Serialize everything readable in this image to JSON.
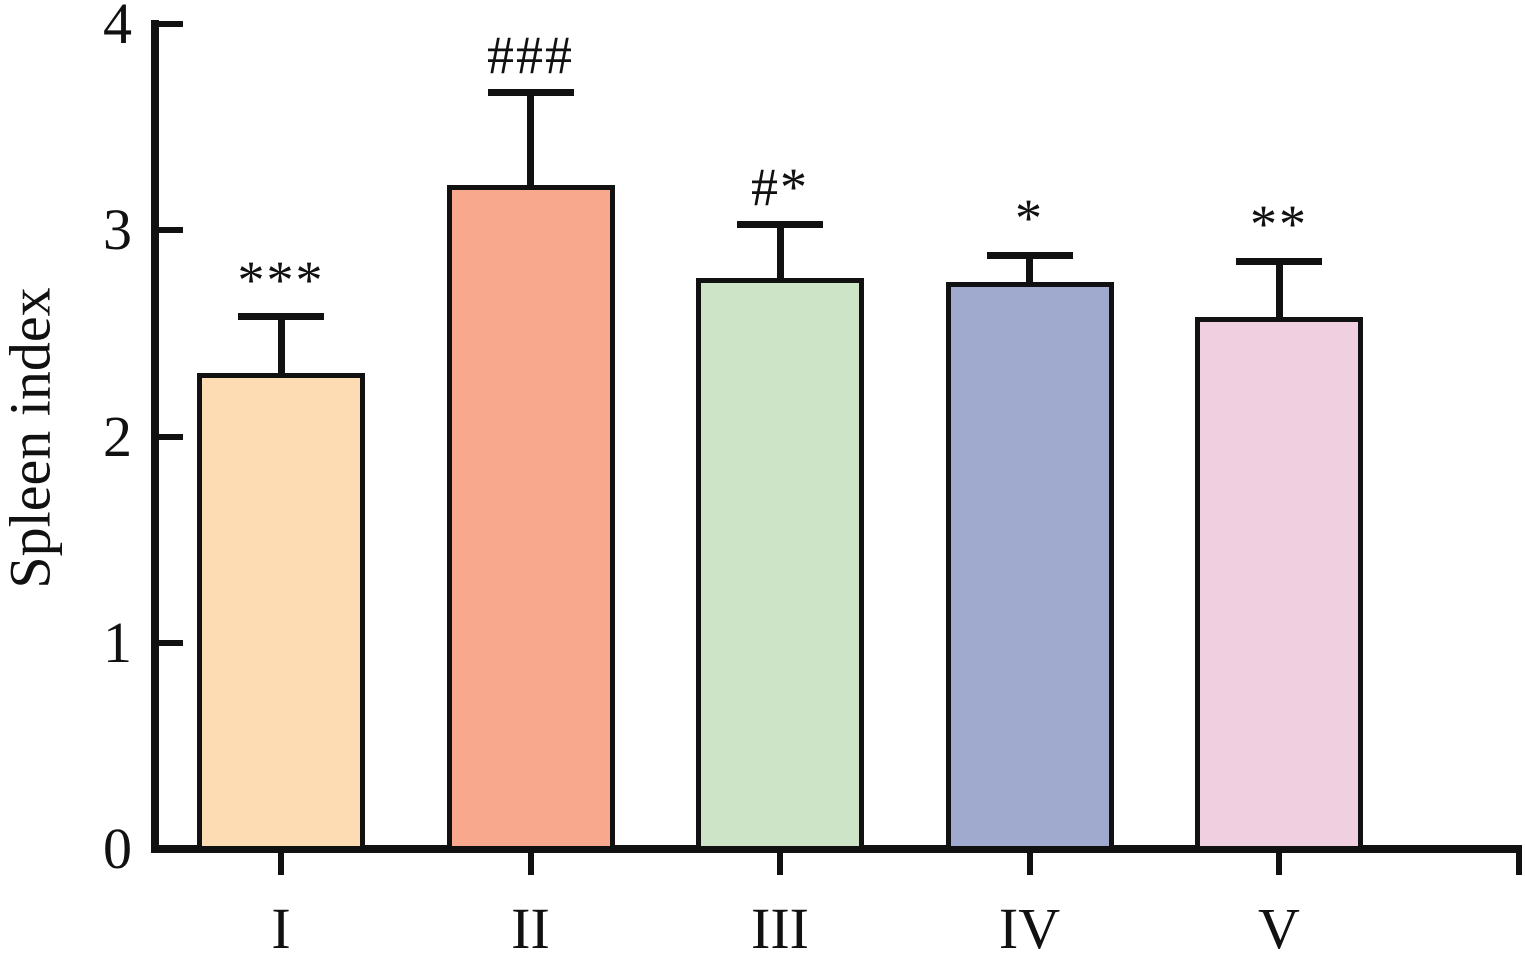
{
  "chart_data": {
    "type": "bar",
    "title": "",
    "xlabel": "",
    "ylabel": "Spleen index",
    "categories": [
      "I",
      "II",
      "III",
      "IV",
      "V"
    ],
    "values": [
      2.31,
      3.22,
      2.77,
      2.75,
      2.58
    ],
    "errors": [
      0.27,
      0.45,
      0.26,
      0.13,
      0.27
    ],
    "annotations": [
      "***",
      "###",
      "#*",
      "*",
      "**"
    ],
    "bar_colors": [
      "#fddcb3",
      "#f8a98d",
      "#cee4c7",
      "#9faace",
      "#f0cfe0"
    ],
    "bar_border_color": "#111111",
    "axis_color": "#111111",
    "ylim": [
      0,
      4
    ],
    "yticks": [
      0,
      1,
      2,
      3,
      4
    ],
    "grid": false,
    "legend": null,
    "error_bar_direction": "upper-only"
  }
}
